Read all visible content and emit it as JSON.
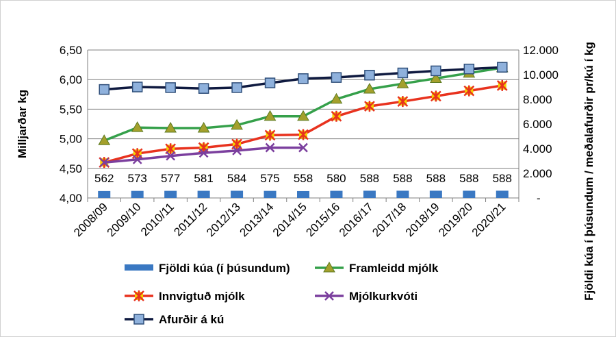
{
  "chart_data": {
    "type": "line",
    "categories": [
      "2008/09",
      "2009/10",
      "2010/11",
      "2011/12",
      "2012/13",
      "2013/14",
      "2014/15",
      "2015/16",
      "2016/17",
      "2017/18",
      "2018/19",
      "2019/20",
      "2020/21"
    ],
    "ylabel_left": "Milljarðar kg",
    "ylabel_right": "Fjöldi kúa í þúsundum / meðalafurðir pr/kú í kg",
    "ylim_left": [
      4.0,
      6.5
    ],
    "ylim_right": [
      0,
      12000
    ],
    "left_ticks": [
      "4,00",
      "4,50",
      "5,00",
      "5,50",
      "6,00",
      "6,50"
    ],
    "right_ticks": [
      "-",
      "2.000",
      "4.000",
      "6.000",
      "8.000",
      "10.000",
      "12.000"
    ],
    "grid": true,
    "legend_position": "bottom",
    "series": [
      {
        "name": "Fjöldi kúa (í þúsundum)",
        "axis": "right",
        "kind": "bar",
        "color": "#3a78c2",
        "values": [
          562,
          573,
          577,
          581,
          584,
          575,
          558,
          580,
          588,
          588,
          588,
          588,
          588
        ],
        "labels": [
          "562",
          "573",
          "577",
          "581",
          "584",
          "575",
          "558",
          "580",
          "588",
          "588",
          "588",
          "588",
          "588"
        ]
      },
      {
        "name": "Framleidd mjólk",
        "axis": "left",
        "kind": "line",
        "color": "#35a04a",
        "marker": "triangle",
        "values": [
          4.97,
          5.19,
          5.18,
          5.18,
          5.23,
          5.38,
          5.38,
          5.67,
          5.84,
          5.93,
          6.02,
          6.11,
          6.2
        ]
      },
      {
        "name": "Innvigtuð mjólk",
        "axis": "left",
        "kind": "line",
        "color": "#e8321e",
        "marker": "star",
        "values": [
          4.6,
          4.75,
          4.83,
          4.85,
          4.91,
          5.06,
          5.07,
          5.38,
          5.55,
          5.63,
          5.72,
          5.81,
          5.9
        ]
      },
      {
        "name": "Mjólkurkvóti",
        "axis": "left",
        "kind": "line",
        "color": "#7b3f9e",
        "marker": "x",
        "values": [
          4.6,
          4.65,
          4.71,
          4.76,
          4.8,
          4.85,
          4.85,
          null,
          null,
          null,
          null,
          null,
          null
        ]
      },
      {
        "name": "Afurðir á kú",
        "axis": "right",
        "kind": "line",
        "color": "#0f1a40",
        "marker": "square",
        "values": [
          8800,
          9000,
          8950,
          8880,
          8950,
          9330,
          9680,
          9770,
          9960,
          10140,
          10310,
          10460,
          10600
        ]
      }
    ]
  }
}
